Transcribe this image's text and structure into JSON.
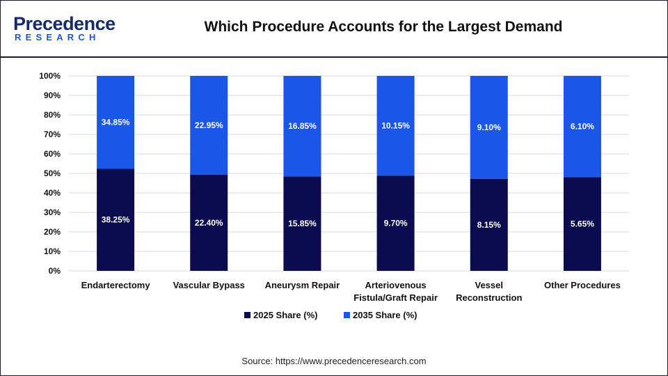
{
  "header": {
    "logo_name": "Precedence",
    "logo_sub": "RESEARCH",
    "title": "Which Procedure Accounts for the Largest Demand"
  },
  "source": "Source: https://www.precedenceresearch.com",
  "colors": {
    "series_2025": "#0b0b4f",
    "series_2035": "#1a56e8",
    "grid": "#d9d9d9",
    "text": "#111111"
  },
  "chart_data": {
    "type": "bar",
    "stacked": true,
    "normalized_percent": true,
    "categories": [
      [
        "Endarterectomy"
      ],
      [
        "Vascular Bypass"
      ],
      [
        "Aneurysm Repair"
      ],
      [
        "Arteriovenous",
        "Fistula/Graft Repair"
      ],
      [
        "Vessel",
        "Reconstruction"
      ],
      [
        "Other Procedures"
      ]
    ],
    "series": [
      {
        "name": "2025 Share (%)",
        "values": [
          38.25,
          22.4,
          15.85,
          9.7,
          8.15,
          5.65
        ],
        "labels": [
          "38.25%",
          "22.40%",
          "15.85%",
          "9.70%",
          "8.15%",
          "5.65%"
        ]
      },
      {
        "name": "2035 Share (%)",
        "values": [
          34.85,
          22.95,
          16.85,
          10.15,
          9.1,
          6.1
        ],
        "labels": [
          "34.85%",
          "22.95%",
          "16.85%",
          "10.15%",
          "9.10%",
          "6.10%"
        ]
      }
    ],
    "y_ticks": [
      "0%",
      "10%",
      "20%",
      "30%",
      "40%",
      "50%",
      "60%",
      "70%",
      "80%",
      "90%",
      "100%"
    ],
    "ylim": [
      0,
      100
    ],
    "grid": true,
    "legend": "bottom-center"
  }
}
